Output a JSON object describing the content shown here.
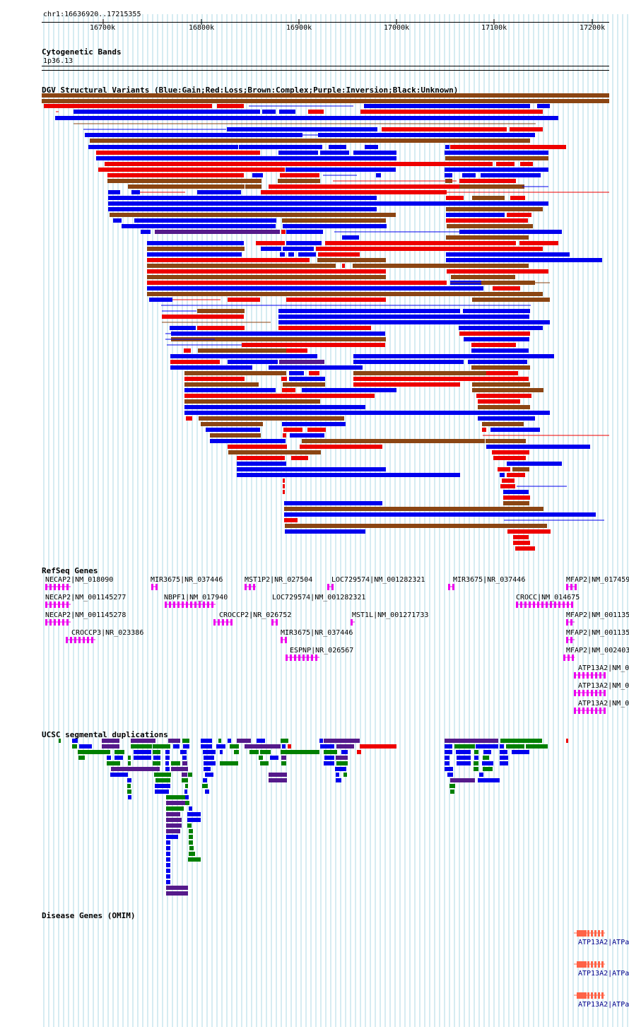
{
  "window": {
    "location": "chr1:16636920..17215355"
  },
  "ruler": {
    "ticks": [
      "16700k",
      "16800k",
      "16900k",
      "17000k",
      "17100k",
      "17200k"
    ]
  },
  "cyto": {
    "title": "Cytogenetic Bands",
    "band": "1p36.13"
  },
  "dgv": {
    "title": "DGV Structural Variants (Blue:Gain;Red:Loss;Brown:Complex;Purple:Inversion;Black:Unknown)"
  },
  "refseq": {
    "title": "RefSeq Genes",
    "genes": [
      "NECAP2|NM_018090",
      "NECAP2|NM_001145277",
      "NECAP2|NM_001145278",
      "CROCCP3|NR_023386",
      "MIR3675|NR_037446",
      "NBPF1|NM_017940",
      "CROCCP2|NR_026752",
      "MST1P2|NR_027504",
      "LOC729574|NM_001282321",
      "MIR3675|NR_037446",
      "ESPNP|NR_026567",
      "LOC729574|NM_001282321",
      "MST1L|NM_001271733",
      "MIR3675|NR_037446",
      "CROCC|NM_014675",
      "MFAP2|NM_017459",
      "MFAP2|NM_001135",
      "MFAP2|NM_001135",
      "MFAP2|NM_002403",
      "ATP13A2|NM_0",
      "ATP13A2|NM_0",
      "ATP13A2|NM_0"
    ]
  },
  "segdup": {
    "title": "UCSC segmental duplications"
  },
  "omim": {
    "title": "Disease Genes (OMIM)",
    "labels": [
      "ATP13A2|ATPa",
      "ATP13A2|ATPa",
      "ATP13A2|ATPa"
    ]
  },
  "colors": {
    "gain": "#0000ee",
    "loss": "#ee0000",
    "complex": "#8b4513",
    "inversion": "#551a8b",
    "refseq": "#ee00ee",
    "segdup_green": "#008000",
    "omim": "#ff6347",
    "grid": "#add8e6"
  }
}
